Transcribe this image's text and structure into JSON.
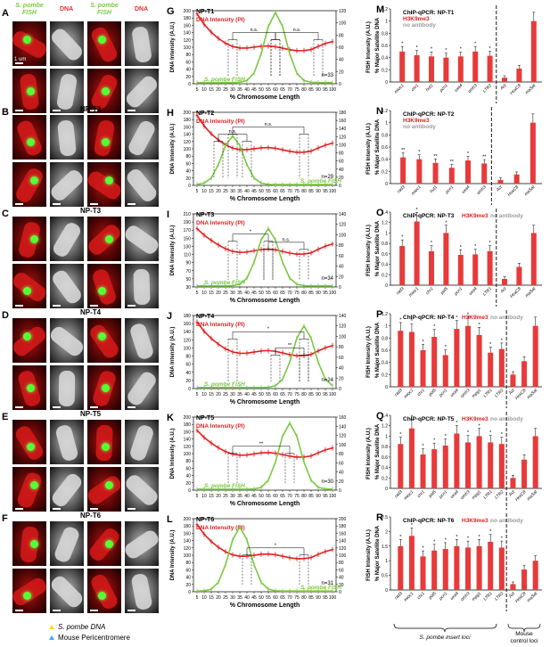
{
  "colors": {
    "dna": "#e02020",
    "fish": "#7ac943",
    "h3k9": "#e02020",
    "noab": "#9a9a9a",
    "bar": "#e83a3a"
  },
  "micro_header": {
    "fish": "S. pombe FISH",
    "dna": "DNA"
  },
  "scale_text": "1 um",
  "rows": [
    {
      "letter": "A",
      "title": "NP-T1"
    },
    {
      "letter": "B",
      "title": "NP-T2"
    },
    {
      "letter": "C",
      "title": "NP-T3"
    },
    {
      "letter": "D",
      "title": "NP-T4"
    },
    {
      "letter": "E",
      "title": "NP-T5"
    },
    {
      "letter": "F",
      "title": "NP-T6"
    }
  ],
  "micro_legend": {
    "pombe": "S. pombe DNA",
    "mouse": "Mouse Pericentromere"
  },
  "profiles": [
    {
      "letter": "G",
      "title": "NP-T1",
      "n": "n=33",
      "fish_peak": 60,
      "fish_peak_val": 115,
      "dna_left": 188,
      "ylim": [
        0,
        200
      ],
      "y2lim": [
        0,
        120
      ],
      "yticks": [
        0,
        20,
        40,
        60,
        80,
        100,
        120,
        140,
        160,
        180,
        200
      ],
      "y2ticks": [
        0,
        20,
        40,
        60,
        80,
        100,
        120
      ],
      "brackets": [
        {
          "a": 30,
          "b": 60,
          "h": 140,
          "label": "n.s."
        },
        {
          "a": 60,
          "b": 90,
          "h": 140,
          "label": "n.s."
        }
      ]
    },
    {
      "letter": "H",
      "title": "NP-T2",
      "n": "n=29",
      "fish_peak": 30,
      "fish_peak_val": 120,
      "dna_left": 188,
      "ylim": [
        0,
        200
      ],
      "y2lim": [
        0,
        180
      ],
      "yticks": [
        0,
        20,
        40,
        60,
        80,
        100,
        120,
        140,
        160,
        180,
        200
      ],
      "y2ticks": [
        0,
        20,
        40,
        60,
        80,
        100,
        120,
        140,
        160,
        180
      ],
      "brackets": [
        {
          "a": 20,
          "b": 40,
          "h": 140,
          "label": "n.s."
        },
        {
          "a": 30,
          "b": 80,
          "h": 160,
          "label": "n.s."
        }
      ]
    },
    {
      "letter": "I",
      "title": "NP-T3",
      "n": "n=34",
      "fish_peak": 55,
      "fish_peak_val": 110,
      "dna_left": 170,
      "ylim": [
        30,
        210
      ],
      "y2lim": [
        0,
        140
      ],
      "yticks": [
        30,
        50,
        70,
        90,
        110,
        130,
        150,
        170,
        190,
        210
      ],
      "y2ticks": [
        0,
        20,
        40,
        60,
        80,
        100,
        120,
        140
      ],
      "brackets": [
        {
          "a": 30,
          "b": 55,
          "h": 160,
          "label": "*"
        },
        {
          "a": 55,
          "b": 80,
          "h": 140,
          "label": "n.s."
        }
      ]
    },
    {
      "letter": "J",
      "title": "NP-T4",
      "n": "n=24",
      "fish_peak": 80,
      "fish_peak_val": 118,
      "dna_left": 160,
      "ylim": [
        0,
        180
      ],
      "y2lim": [
        0,
        140
      ],
      "yticks": [
        0,
        20,
        40,
        60,
        80,
        100,
        120,
        140,
        160,
        180
      ],
      "y2ticks": [
        0,
        20,
        40,
        60,
        80,
        100,
        120,
        140
      ],
      "brackets": [
        {
          "a": 30,
          "b": 80,
          "h": 140,
          "label": "*"
        },
        {
          "a": 60,
          "b": 80,
          "h": 100,
          "label": "**"
        }
      ]
    },
    {
      "letter": "K",
      "title": "NP-T5",
      "n": "n=30",
      "fish_peak": 70,
      "fish_peak_val": 145,
      "dna_left": 160,
      "ylim": [
        0,
        200
      ],
      "y2lim": [
        0,
        160
      ],
      "yticks": [
        0,
        20,
        40,
        60,
        80,
        100,
        120,
        140,
        160,
        180,
        200
      ],
      "y2ticks": [
        0,
        20,
        40,
        60,
        80,
        100,
        120,
        140,
        160
      ],
      "brackets": [
        {
          "a": 30,
          "b": 70,
          "h": 120,
          "label": "**"
        }
      ]
    },
    {
      "letter": "L",
      "title": "NP-T6",
      "n": "n=31",
      "fish_peak": 35,
      "fish_peak_val": 175,
      "dna_left": 180,
      "ylim": [
        0,
        200
      ],
      "y2lim": [
        0,
        200
      ],
      "yticks": [
        0,
        20,
        40,
        60,
        80,
        100,
        120,
        140,
        160,
        180,
        200
      ],
      "y2ticks": [
        0,
        20,
        40,
        60,
        80,
        100,
        120,
        140,
        160,
        180,
        200
      ],
      "brackets": [
        {
          "a": 40,
          "b": 80,
          "h": 120,
          "label": "*"
        }
      ]
    }
  ],
  "profile_labels": {
    "dna": "DNA Intensity (PI)",
    "fish": "S. pombe FISH",
    "ylabel": "DNA Intensity (A.U.)",
    "y2label": "FISH Intensity (A.U.)",
    "xlabel": "% Chromosome Length",
    "xticks": [
      5,
      10,
      15,
      20,
      25,
      30,
      35,
      40,
      45,
      50,
      55,
      60,
      65,
      70,
      75,
      80,
      85,
      90,
      95,
      100
    ]
  },
  "chip": [
    {
      "letter": "M",
      "title": "ChIP-qPCR: NP-T1",
      "legend": [
        "H3K9me3",
        "no antibody"
      ],
      "legend_stacked": true,
      "ylim": [
        0,
        1.2
      ],
      "yticks": [
        0,
        0.2,
        0.4,
        0.6,
        0.8,
        1.0,
        1.2
      ],
      "categories": [
        "mioc1",
        "chr1",
        "hut1",
        "pcn1",
        "uxa4",
        "omh3",
        "LTR2",
        "Act",
        "HoxC8",
        "maSat"
      ],
      "values": [
        0.5,
        0.44,
        0.42,
        0.4,
        0.42,
        0.5,
        0.43,
        0.07,
        0.22,
        1.0
      ],
      "stars": [
        "*",
        "*",
        "*",
        "*",
        "*",
        "*",
        "*",
        "",
        "",
        ""
      ]
    },
    {
      "letter": "N",
      "title": "ChIP-qPCR: NP-T2",
      "legend": [
        "H3K9me3",
        "no antibody"
      ],
      "legend_stacked": true,
      "ylim": [
        0,
        1.2
      ],
      "yticks": [
        0,
        0.2,
        0.4,
        0.6,
        0.8,
        1.0,
        1.2
      ],
      "categories": [
        "rad3",
        "mioc1",
        "hut1",
        "pcn1",
        "uxa4",
        "omh3",
        "Act",
        "HoxC8",
        "maSat"
      ],
      "values": [
        0.43,
        0.4,
        0.34,
        0.26,
        0.38,
        0.33,
        0.06,
        0.15,
        1.0
      ],
      "stars": [
        "**",
        "*",
        "**",
        "**",
        "*",
        "**",
        "",
        "",
        ""
      ]
    },
    {
      "letter": "O",
      "title": "ChIP-qPCR: NP-T3",
      "legend": [
        "H3K9me3",
        "no antibody"
      ],
      "legend_stacked": false,
      "ylim": [
        0,
        1.4
      ],
      "yticks": [
        0,
        0.2,
        0.4,
        0.6,
        0.8,
        1.0,
        1.2,
        1.4
      ],
      "categories": [
        "rad3",
        "mioc1",
        "chr1",
        "pol5",
        "pcn1",
        "uxa4",
        "LTR1",
        "Act",
        "HoxC8",
        "maSat"
      ],
      "values": [
        0.75,
        1.22,
        0.65,
        1.0,
        0.58,
        0.59,
        0.65,
        0.12,
        0.35,
        1.0
      ],
      "stars": [
        "*",
        "*",
        "*",
        "*",
        "*",
        "*",
        "*",
        "",
        "",
        ""
      ]
    },
    {
      "letter": "P",
      "title": "ChIP-qPCR: NP-T4",
      "legend": [
        "H3K9me3",
        "no antibody"
      ],
      "legend_stacked": false,
      "ylim": [
        0,
        1.2
      ],
      "yticks": [
        0,
        0.2,
        0.4,
        0.6,
        0.8,
        1.0,
        1.2
      ],
      "categories": [
        "rad3",
        "mioc1",
        "chr1",
        "pol5",
        "pcn1",
        "uxa4",
        "omh3",
        "mpg1",
        "LTR1",
        "LTR2",
        "Act",
        "HoxC8",
        "maSat"
      ],
      "values": [
        0.92,
        0.9,
        0.6,
        0.82,
        0.52,
        0.95,
        1.0,
        0.85,
        0.56,
        0.62,
        0.2,
        0.42,
        1.0
      ],
      "stars": [
        "*",
        "*",
        "*",
        "*",
        "*",
        "*",
        "*",
        "*",
        "*",
        "*",
        "",
        "",
        ""
      ]
    },
    {
      "letter": "Q",
      "title": "ChIP-qPCR: NP-T5",
      "legend": [
        "H3K9me3",
        "no antibody"
      ],
      "legend_stacked": false,
      "ylim": [
        0,
        1.4
      ],
      "yticks": [
        0,
        0.2,
        0.4,
        0.6,
        0.8,
        1.0,
        1.2,
        1.4
      ],
      "categories": [
        "rad3",
        "mioc1",
        "chr1",
        "pol5",
        "pcn1",
        "uxa4",
        "omh3",
        "mpg1",
        "LTR1",
        "LTR2",
        "Act",
        "HoxC8",
        "maSat"
      ],
      "values": [
        0.85,
        1.15,
        0.65,
        0.75,
        0.82,
        1.05,
        0.88,
        1.0,
        0.88,
        0.85,
        0.2,
        0.55,
        1.0
      ],
      "stars": [
        "*",
        "*",
        "*",
        "*",
        "*",
        "*",
        "*",
        "*",
        "*",
        "*",
        "",
        "",
        ""
      ]
    },
    {
      "letter": "R",
      "title": "ChIP-qPCR: NP-T6",
      "legend": [
        "H3K9me3",
        "no antibody"
      ],
      "legend_stacked": false,
      "ylim": [
        0,
        2.5
      ],
      "yticks": [
        0,
        0.5,
        1.0,
        1.5,
        2.0,
        2.5
      ],
      "categories": [
        "rad3",
        "mioc1",
        "chr1",
        "pol5",
        "pcn1",
        "uxa4",
        "omh3",
        "mpg1",
        "LTR1",
        "LTR2",
        "Act",
        "HoxC8",
        "maSat"
      ],
      "values": [
        1.5,
        1.85,
        1.15,
        1.35,
        1.4,
        1.5,
        1.45,
        1.5,
        1.65,
        1.45,
        0.2,
        0.7,
        1.0
      ],
      "stars": [
        "*",
        "*",
        "*",
        "*",
        "*",
        "*",
        "*",
        "*",
        "*",
        "*",
        "",
        "",
        ""
      ]
    }
  ],
  "chip_ylabel": "% Major Satellite DNA",
  "chip_footer": {
    "pombe": "S. pombe insert loci",
    "mouse": "Mouse control loci"
  }
}
